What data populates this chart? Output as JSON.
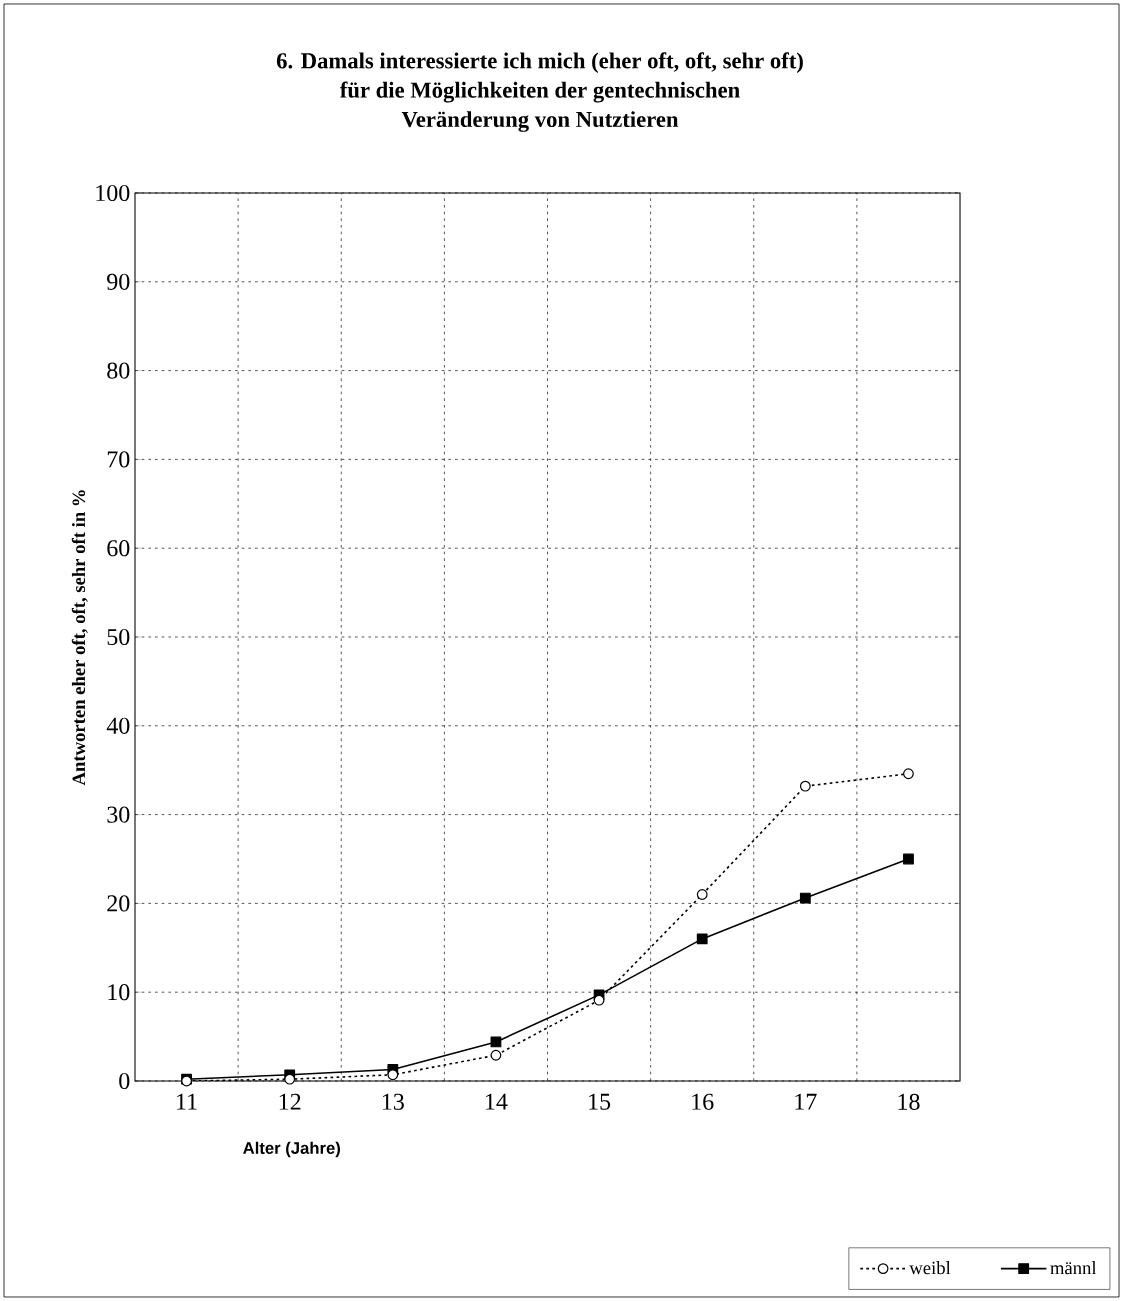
{
  "chart_data": {
    "type": "line",
    "title": "6. Damals interessierte ich mich (eher oft, oft, sehr oft)\nfür die Möglichkeiten der gentechnischen\nVeränderung von Nutztieren",
    "xlabel": "Alter (Jahre)",
    "ylabel": "Antworten eher oft, oft, sehr oft in %",
    "categories": [
      "11",
      "12",
      "13",
      "14",
      "15",
      "16",
      "17",
      "18"
    ],
    "series": [
      {
        "name": "weibl",
        "color": "#000000",
        "marker": "circle",
        "line_style": "dotted",
        "values": [
          0,
          0.2,
          0.7,
          2.9,
          9.1,
          21,
          33.2,
          34.6
        ]
      },
      {
        "name": "männl",
        "color": "#000000",
        "marker": "square",
        "line_style": "solid",
        "values": [
          0.2,
          0.7,
          1.3,
          4.4,
          9.7,
          16,
          20.6,
          25
        ]
      }
    ],
    "ylim": [
      0,
      100
    ],
    "yticks": [
      0,
      10,
      20,
      30,
      40,
      50,
      60,
      70,
      80,
      90,
      100
    ],
    "grid": true,
    "legend": "bottom right"
  }
}
